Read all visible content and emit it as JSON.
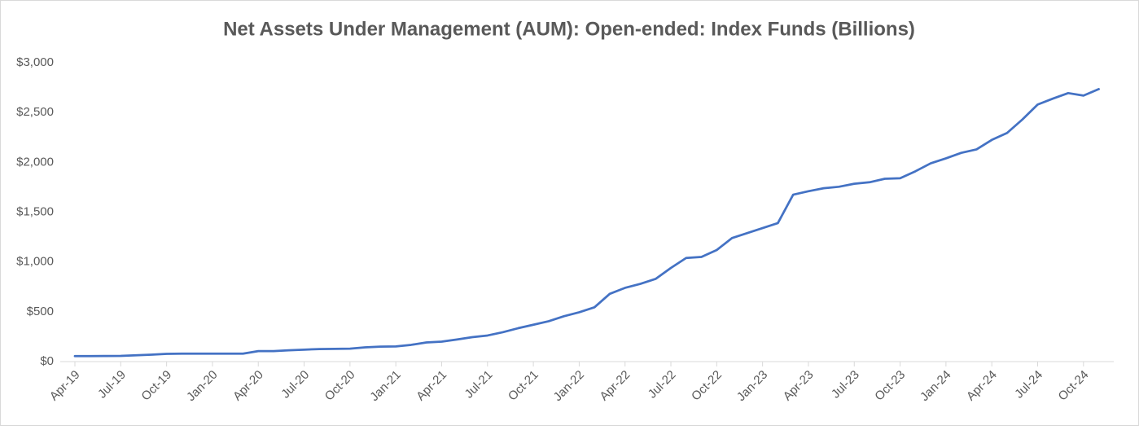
{
  "chart_data": {
    "type": "line",
    "title": "Net Assets Under Management (AUM): Open-ended: Index Funds (Billions)",
    "categories": [
      "Apr-19",
      null,
      null,
      "Jul-19",
      null,
      null,
      "Oct-19",
      null,
      null,
      "Jan-20",
      null,
      null,
      "Apr-20",
      null,
      null,
      "Jul-20",
      null,
      null,
      "Oct-20",
      null,
      null,
      "Jan-21",
      null,
      null,
      "Apr-21",
      null,
      null,
      "Jul-21",
      null,
      null,
      "Oct-21",
      null,
      null,
      "Jan-22",
      null,
      null,
      "Apr-22",
      null,
      null,
      "Jul-22",
      null,
      null,
      "Oct-22",
      null,
      null,
      "Jan-23",
      null,
      null,
      "Apr-23",
      null,
      null,
      "Jul-23",
      null,
      null,
      "Oct-23",
      null,
      null,
      "Jan-24",
      null,
      null,
      "Apr-24",
      null,
      null,
      "Jul-24",
      null,
      null,
      "Oct-24",
      null
    ],
    "series": [
      {
        "color": "#4472c4",
        "values": [
          55,
          55,
          56,
          57,
          63,
          70,
          78,
          80,
          80,
          80,
          80,
          80,
          105,
          105,
          113,
          120,
          126,
          128,
          130,
          143,
          150,
          152,
          168,
          192,
          200,
          222,
          245,
          262,
          295,
          335,
          370,
          405,
          455,
          495,
          545,
          680,
          740,
          780,
          830,
          940,
          1040,
          1050,
          1120,
          1240,
          1290,
          1340,
          1390,
          1675,
          1710,
          1740,
          1755,
          1785,
          1800,
          1835,
          1840,
          1910,
          1990,
          2040,
          2095,
          2130,
          2225,
          2295,
          2430,
          2580,
          2640,
          2695,
          2670,
          2735
        ]
      }
    ],
    "ylim": [
      0,
      3000
    ],
    "yticks": [
      {
        "value": 0,
        "label": "$0"
      },
      {
        "value": 500,
        "label": "$500"
      },
      {
        "value": 1000,
        "label": "$1,000"
      },
      {
        "value": 1500,
        "label": "$1,500"
      },
      {
        "value": 2000,
        "label": "$2,000"
      },
      {
        "value": 2500,
        "label": "$2,500"
      },
      {
        "value": 3000,
        "label": "$3,000"
      }
    ],
    "grid": false
  }
}
